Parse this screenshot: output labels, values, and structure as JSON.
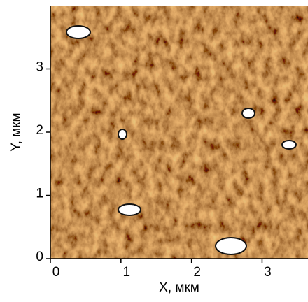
{
  "chart_data": {
    "type": "image",
    "xlabel": "X, мкм",
    "ylabel": "Y, мкм",
    "xlim": [
      0,
      3.65
    ],
    "ylim": [
      0,
      4.0
    ],
    "xticks": [
      0,
      1,
      2,
      3
    ],
    "yticks": [
      0,
      1,
      2,
      3
    ],
    "color": "#a0611c"
  }
}
